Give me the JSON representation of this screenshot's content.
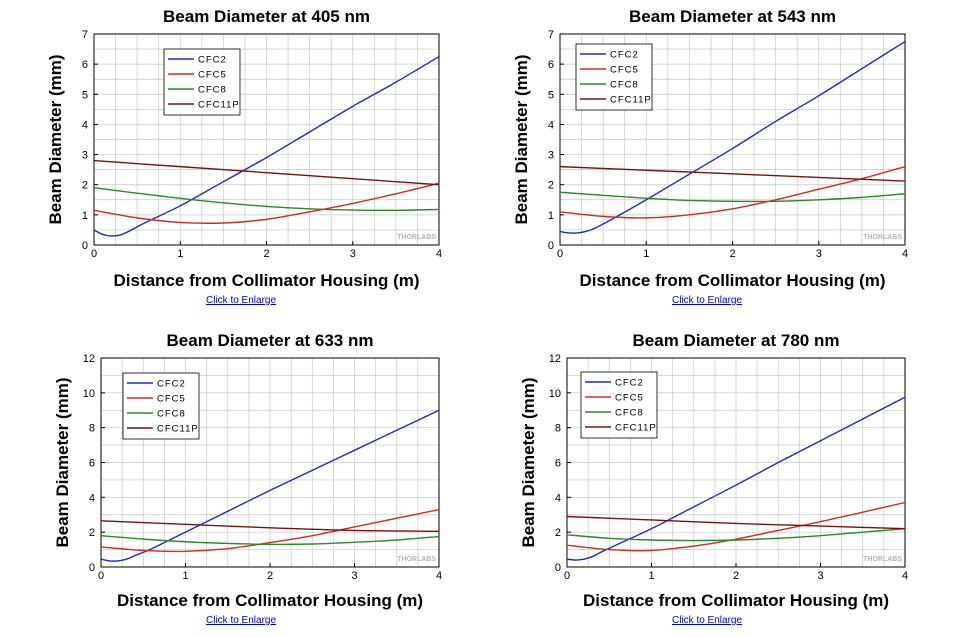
{
  "enlarge_label": "Click to Enlarge",
  "watermark": "THORLABS",
  "colors": {
    "CFC2": "#1f2fb5",
    "CFC5": "#d42a1f",
    "CFC8": "#2a8a2a",
    "CFC11P": "#7a1010",
    "grid": "#c8c8c8"
  },
  "chart_data": [
    {
      "type": "line",
      "title": "Beam Diameter at 405 nm",
      "xlabel": "Distance from Collimator Housing (m)",
      "ylabel": "Beam Diameter (mm)",
      "xlim": [
        0,
        4
      ],
      "ylim": [
        0,
        7
      ],
      "xticks": [
        0,
        1,
        2,
        3,
        4
      ],
      "yticks": [
        0,
        1,
        2,
        3,
        4,
        5,
        6,
        7
      ],
      "legend": "top-left",
      "grid": true,
      "series": [
        {
          "name": "CFC2",
          "x": [
            0,
            0.1,
            0.2,
            0.3,
            0.4,
            0.6,
            1,
            1.5,
            2,
            2.5,
            3,
            3.5,
            4
          ],
          "y": [
            0.5,
            0.35,
            0.3,
            0.33,
            0.45,
            0.75,
            1.3,
            2.1,
            2.9,
            3.75,
            4.6,
            5.4,
            6.25
          ]
        },
        {
          "name": "CFC5",
          "x": [
            0,
            0.5,
            1,
            1.5,
            2,
            2.5,
            3,
            3.5,
            4
          ],
          "y": [
            1.15,
            0.9,
            0.75,
            0.73,
            0.85,
            1.1,
            1.38,
            1.7,
            2.05
          ]
        },
        {
          "name": "CFC8",
          "x": [
            0,
            0.5,
            1,
            1.5,
            2,
            2.5,
            3,
            3.5,
            4
          ],
          "y": [
            1.9,
            1.72,
            1.55,
            1.4,
            1.28,
            1.2,
            1.16,
            1.15,
            1.18
          ]
        },
        {
          "name": "CFC11P",
          "x": [
            0,
            1,
            2,
            3,
            4
          ],
          "y": [
            2.8,
            2.6,
            2.4,
            2.2,
            2.0
          ]
        }
      ]
    },
    {
      "type": "line",
      "title": "Beam Diameter at 543 nm",
      "xlabel": "Distance from Collimator Housing (m)",
      "ylabel": "Beam Diameter (mm)",
      "xlim": [
        0,
        4
      ],
      "ylim": [
        0,
        7
      ],
      "xticks": [
        0,
        1,
        2,
        3,
        4
      ],
      "yticks": [
        0,
        1,
        2,
        3,
        4,
        5,
        6,
        7
      ],
      "legend": "top-left",
      "grid": true,
      "series": [
        {
          "name": "CFC2",
          "x": [
            0,
            0.1,
            0.2,
            0.3,
            0.4,
            0.6,
            1,
            1.5,
            2,
            2.5,
            3,
            3.5,
            4
          ],
          "y": [
            0.45,
            0.4,
            0.4,
            0.45,
            0.55,
            0.85,
            1.5,
            2.35,
            3.2,
            4.1,
            4.95,
            5.85,
            6.75
          ]
        },
        {
          "name": "CFC5",
          "x": [
            0,
            0.5,
            1,
            1.5,
            2,
            2.5,
            3,
            3.5,
            4
          ],
          "y": [
            1.1,
            0.95,
            0.9,
            1.0,
            1.2,
            1.5,
            1.85,
            2.2,
            2.6
          ]
        },
        {
          "name": "CFC8",
          "x": [
            0,
            0.5,
            1,
            1.5,
            2,
            2.5,
            3,
            3.5,
            4
          ],
          "y": [
            1.75,
            1.65,
            1.55,
            1.48,
            1.45,
            1.45,
            1.5,
            1.58,
            1.7
          ]
        },
        {
          "name": "CFC11P",
          "x": [
            0,
            1,
            2,
            3,
            4
          ],
          "y": [
            2.6,
            2.48,
            2.36,
            2.24,
            2.12
          ]
        }
      ]
    },
    {
      "type": "line",
      "title": "Beam Diameter at 633 nm",
      "xlabel": "Distance from Collimator Housing (m)",
      "ylabel": "Beam Diameter (mm)",
      "xlim": [
        0,
        4
      ],
      "ylim": [
        0,
        12
      ],
      "xticks": [
        0,
        1,
        2,
        3,
        4
      ],
      "yticks": [
        0,
        2,
        4,
        6,
        8,
        10,
        12
      ],
      "legend": "top-left",
      "grid": true,
      "series": [
        {
          "name": "CFC2",
          "x": [
            0,
            0.1,
            0.2,
            0.3,
            0.4,
            0.6,
            1,
            1.5,
            2,
            2.5,
            3,
            3.5,
            4
          ],
          "y": [
            0.45,
            0.35,
            0.35,
            0.45,
            0.65,
            1.05,
            2.0,
            3.2,
            4.4,
            5.55,
            6.7,
            7.85,
            9.0
          ]
        },
        {
          "name": "CFC5",
          "x": [
            0,
            0.5,
            1,
            1.5,
            2,
            2.5,
            3,
            3.5,
            4
          ],
          "y": [
            1.15,
            0.95,
            0.9,
            1.05,
            1.4,
            1.8,
            2.3,
            2.8,
            3.3
          ]
        },
        {
          "name": "CFC8",
          "x": [
            0,
            0.5,
            1,
            1.5,
            2,
            2.5,
            3,
            3.5,
            4
          ],
          "y": [
            1.8,
            1.6,
            1.45,
            1.35,
            1.3,
            1.32,
            1.42,
            1.55,
            1.75
          ]
        },
        {
          "name": "CFC11P",
          "x": [
            0,
            1,
            2,
            3,
            4
          ],
          "y": [
            2.65,
            2.45,
            2.25,
            2.1,
            2.05
          ]
        }
      ]
    },
    {
      "type": "line",
      "title": "Beam Diameter at 780 nm",
      "xlabel": "Distance from Collimator Housing (m)",
      "ylabel": "Beam Diameter (mm)",
      "xlim": [
        0,
        4
      ],
      "ylim": [
        0,
        12
      ],
      "xticks": [
        0,
        1,
        2,
        3,
        4
      ],
      "yticks": [
        0,
        2,
        4,
        6,
        8,
        10,
        12
      ],
      "legend": "top-left",
      "grid": true,
      "series": [
        {
          "name": "CFC2",
          "x": [
            0,
            0.1,
            0.2,
            0.3,
            0.4,
            0.6,
            1,
            1.5,
            2,
            2.5,
            3,
            3.5,
            4
          ],
          "y": [
            0.45,
            0.4,
            0.45,
            0.6,
            0.85,
            1.3,
            2.2,
            3.45,
            4.7,
            6.0,
            7.25,
            8.5,
            9.75
          ]
        },
        {
          "name": "CFC5",
          "x": [
            0,
            0.5,
            1,
            1.5,
            2,
            2.5,
            3,
            3.5,
            4
          ],
          "y": [
            1.25,
            1.0,
            0.95,
            1.2,
            1.6,
            2.1,
            2.6,
            3.15,
            3.7
          ]
        },
        {
          "name": "CFC8",
          "x": [
            0,
            0.5,
            1,
            1.5,
            2,
            2.5,
            3,
            3.5,
            4
          ],
          "y": [
            1.85,
            1.65,
            1.55,
            1.52,
            1.55,
            1.65,
            1.8,
            2.0,
            2.2
          ]
        },
        {
          "name": "CFC11P",
          "x": [
            0,
            1,
            2,
            3,
            4
          ],
          "y": [
            2.9,
            2.7,
            2.5,
            2.35,
            2.2
          ]
        }
      ]
    }
  ]
}
